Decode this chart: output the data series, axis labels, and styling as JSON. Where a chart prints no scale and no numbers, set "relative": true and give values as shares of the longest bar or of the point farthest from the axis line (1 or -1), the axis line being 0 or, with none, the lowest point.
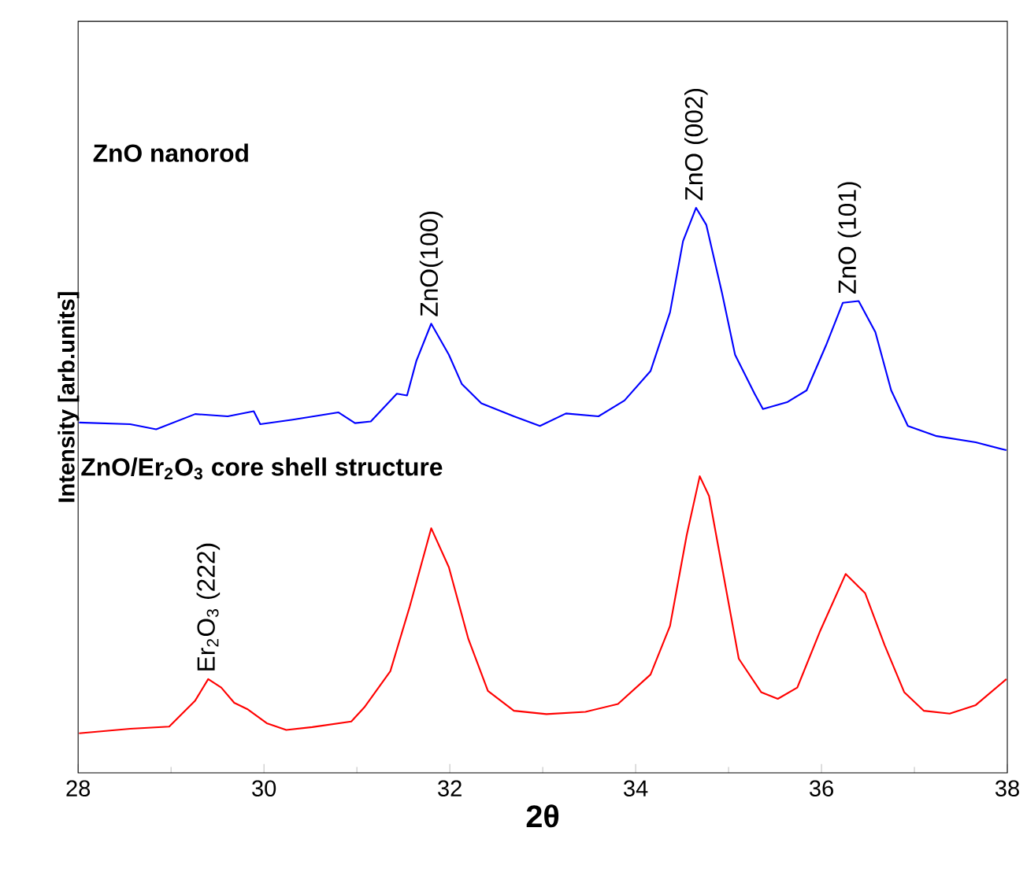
{
  "chart_data": {
    "type": "line",
    "relative": true,
    "xlabel": "2θ",
    "ylabel": "Intensity [arb.units]",
    "xlim": [
      28,
      38
    ],
    "xticks": [
      28,
      30,
      32,
      34,
      36,
      38
    ],
    "annotations": [
      "ZnO nanorod",
      "ZnO/Er$_{2}$O$_{3}$ core shell structure",
      {
        "text": "ZnO(100)",
        "x": 31.8,
        "y": 0.795
      },
      {
        "text": "ZnO (002)",
        "x": 34.65,
        "y": 1
      },
      {
        "text": "ZnO (101)",
        "x": 36.3,
        "y": 0.835
      },
      {
        "text": "Er$_{2}$O$_{3}$ (222)",
        "x": 29.4,
        "y": 0.166
      }
    ],
    "series": [
      {
        "color": "#0000ff",
        "x": [
          28.01,
          28.56,
          28.84,
          29.26,
          29.61,
          29.89,
          29.96,
          30.31,
          30.8,
          30.98,
          31.15,
          31.43,
          31.54,
          31.64,
          31.8,
          31.99,
          32.13,
          32.34,
          32.69,
          32.97,
          33.25,
          33.6,
          33.88,
          34.16,
          34.37,
          34.51,
          34.65,
          34.76,
          34.93,
          35.07,
          35.28,
          35.37,
          35.63,
          35.84,
          36.05,
          36.23,
          36.4,
          36.58,
          36.75,
          36.93,
          37.24,
          37.66,
          37.99
        ],
        "values": [
          0.62,
          0.617,
          0.608,
          0.635,
          0.631,
          0.64,
          0.617,
          0.625,
          0.638,
          0.619,
          0.622,
          0.671,
          0.668,
          0.729,
          0.795,
          0.74,
          0.688,
          0.654,
          0.631,
          0.614,
          0.636,
          0.631,
          0.659,
          0.711,
          0.815,
          0.941,
          1,
          0.97,
          0.849,
          0.74,
          0.671,
          0.644,
          0.656,
          0.677,
          0.757,
          0.832,
          0.835,
          0.78,
          0.677,
          0.614,
          0.596,
          0.585,
          0.571
        ]
      },
      {
        "color": "#ff0000",
        "x": [
          28.01,
          28.56,
          28.98,
          29.26,
          29.4,
          29.54,
          29.68,
          29.82,
          30.03,
          30.24,
          30.52,
          30.94,
          31.08,
          31.36,
          31.57,
          31.8,
          31.99,
          32.2,
          32.41,
          32.69,
          33.04,
          33.46,
          33.81,
          34.16,
          34.37,
          34.55,
          34.69,
          34.79,
          34.93,
          35.11,
          35.35,
          35.53,
          35.74,
          35.98,
          36.26,
          36.47,
          36.68,
          36.89,
          37.1,
          37.38,
          37.66,
          37.99
        ],
        "values": [
          0.07,
          0.078,
          0.082,
          0.128,
          0.166,
          0.151,
          0.124,
          0.113,
          0.088,
          0.076,
          0.081,
          0.091,
          0.116,
          0.18,
          0.295,
          0.433,
          0.364,
          0.237,
          0.145,
          0.11,
          0.104,
          0.108,
          0.122,
          0.174,
          0.26,
          0.421,
          0.525,
          0.49,
          0.364,
          0.202,
          0.143,
          0.131,
          0.151,
          0.249,
          0.352,
          0.318,
          0.226,
          0.143,
          0.11,
          0.105,
          0.12,
          0.166
        ]
      }
    ]
  }
}
